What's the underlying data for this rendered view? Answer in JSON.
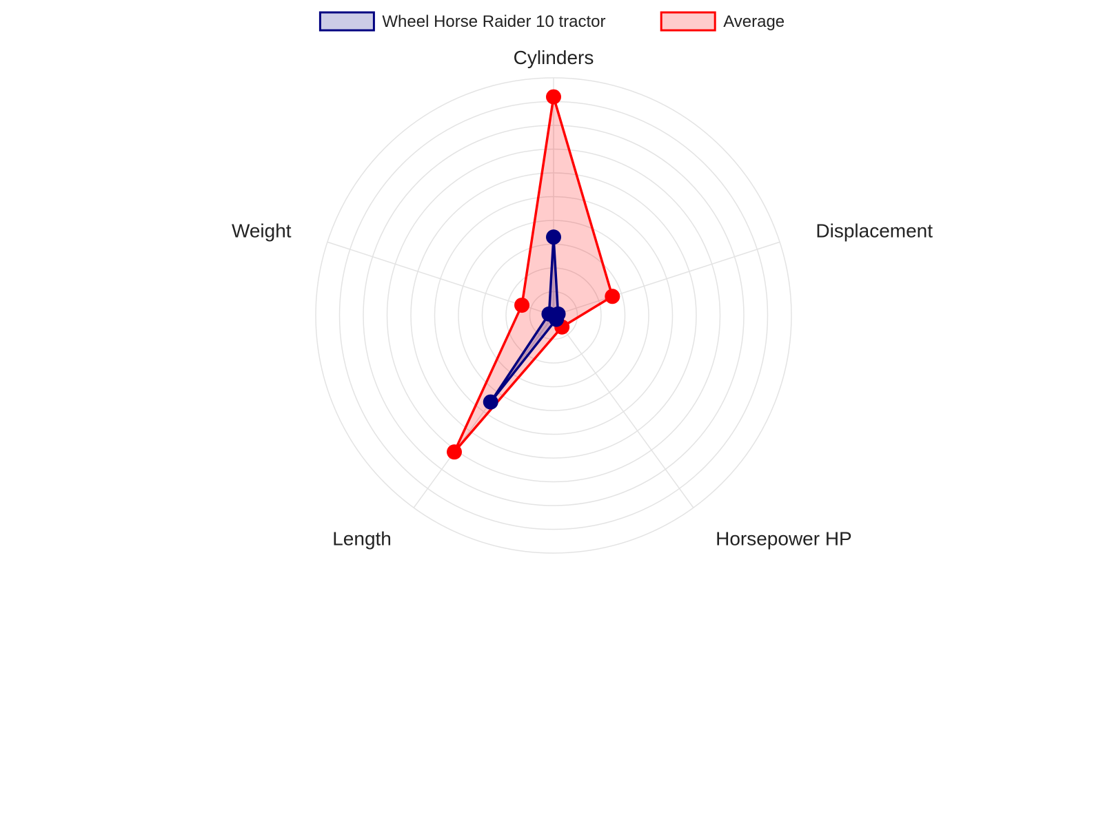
{
  "chart_data": {
    "type": "radar",
    "axes": [
      "Cylinders",
      "Displacement",
      "Horsepower HP",
      "Length",
      "Weight"
    ],
    "rlim": [
      0,
      10
    ],
    "grid_rings": 10,
    "grid": true,
    "legend_position": "top-center",
    "series": [
      {
        "name": "Wheel Horse Raider 10 tractor",
        "values": [
          3.3,
          0.2,
          0.2,
          4.5,
          0.2
        ],
        "color": "#000080",
        "fill": "rgba(0,0,128,0.2)"
      },
      {
        "name": "Average",
        "values": [
          9.2,
          2.6,
          0.6,
          7.1,
          1.4
        ],
        "color": "#ff0000",
        "fill": "rgba(255,0,0,0.2)"
      }
    ]
  }
}
